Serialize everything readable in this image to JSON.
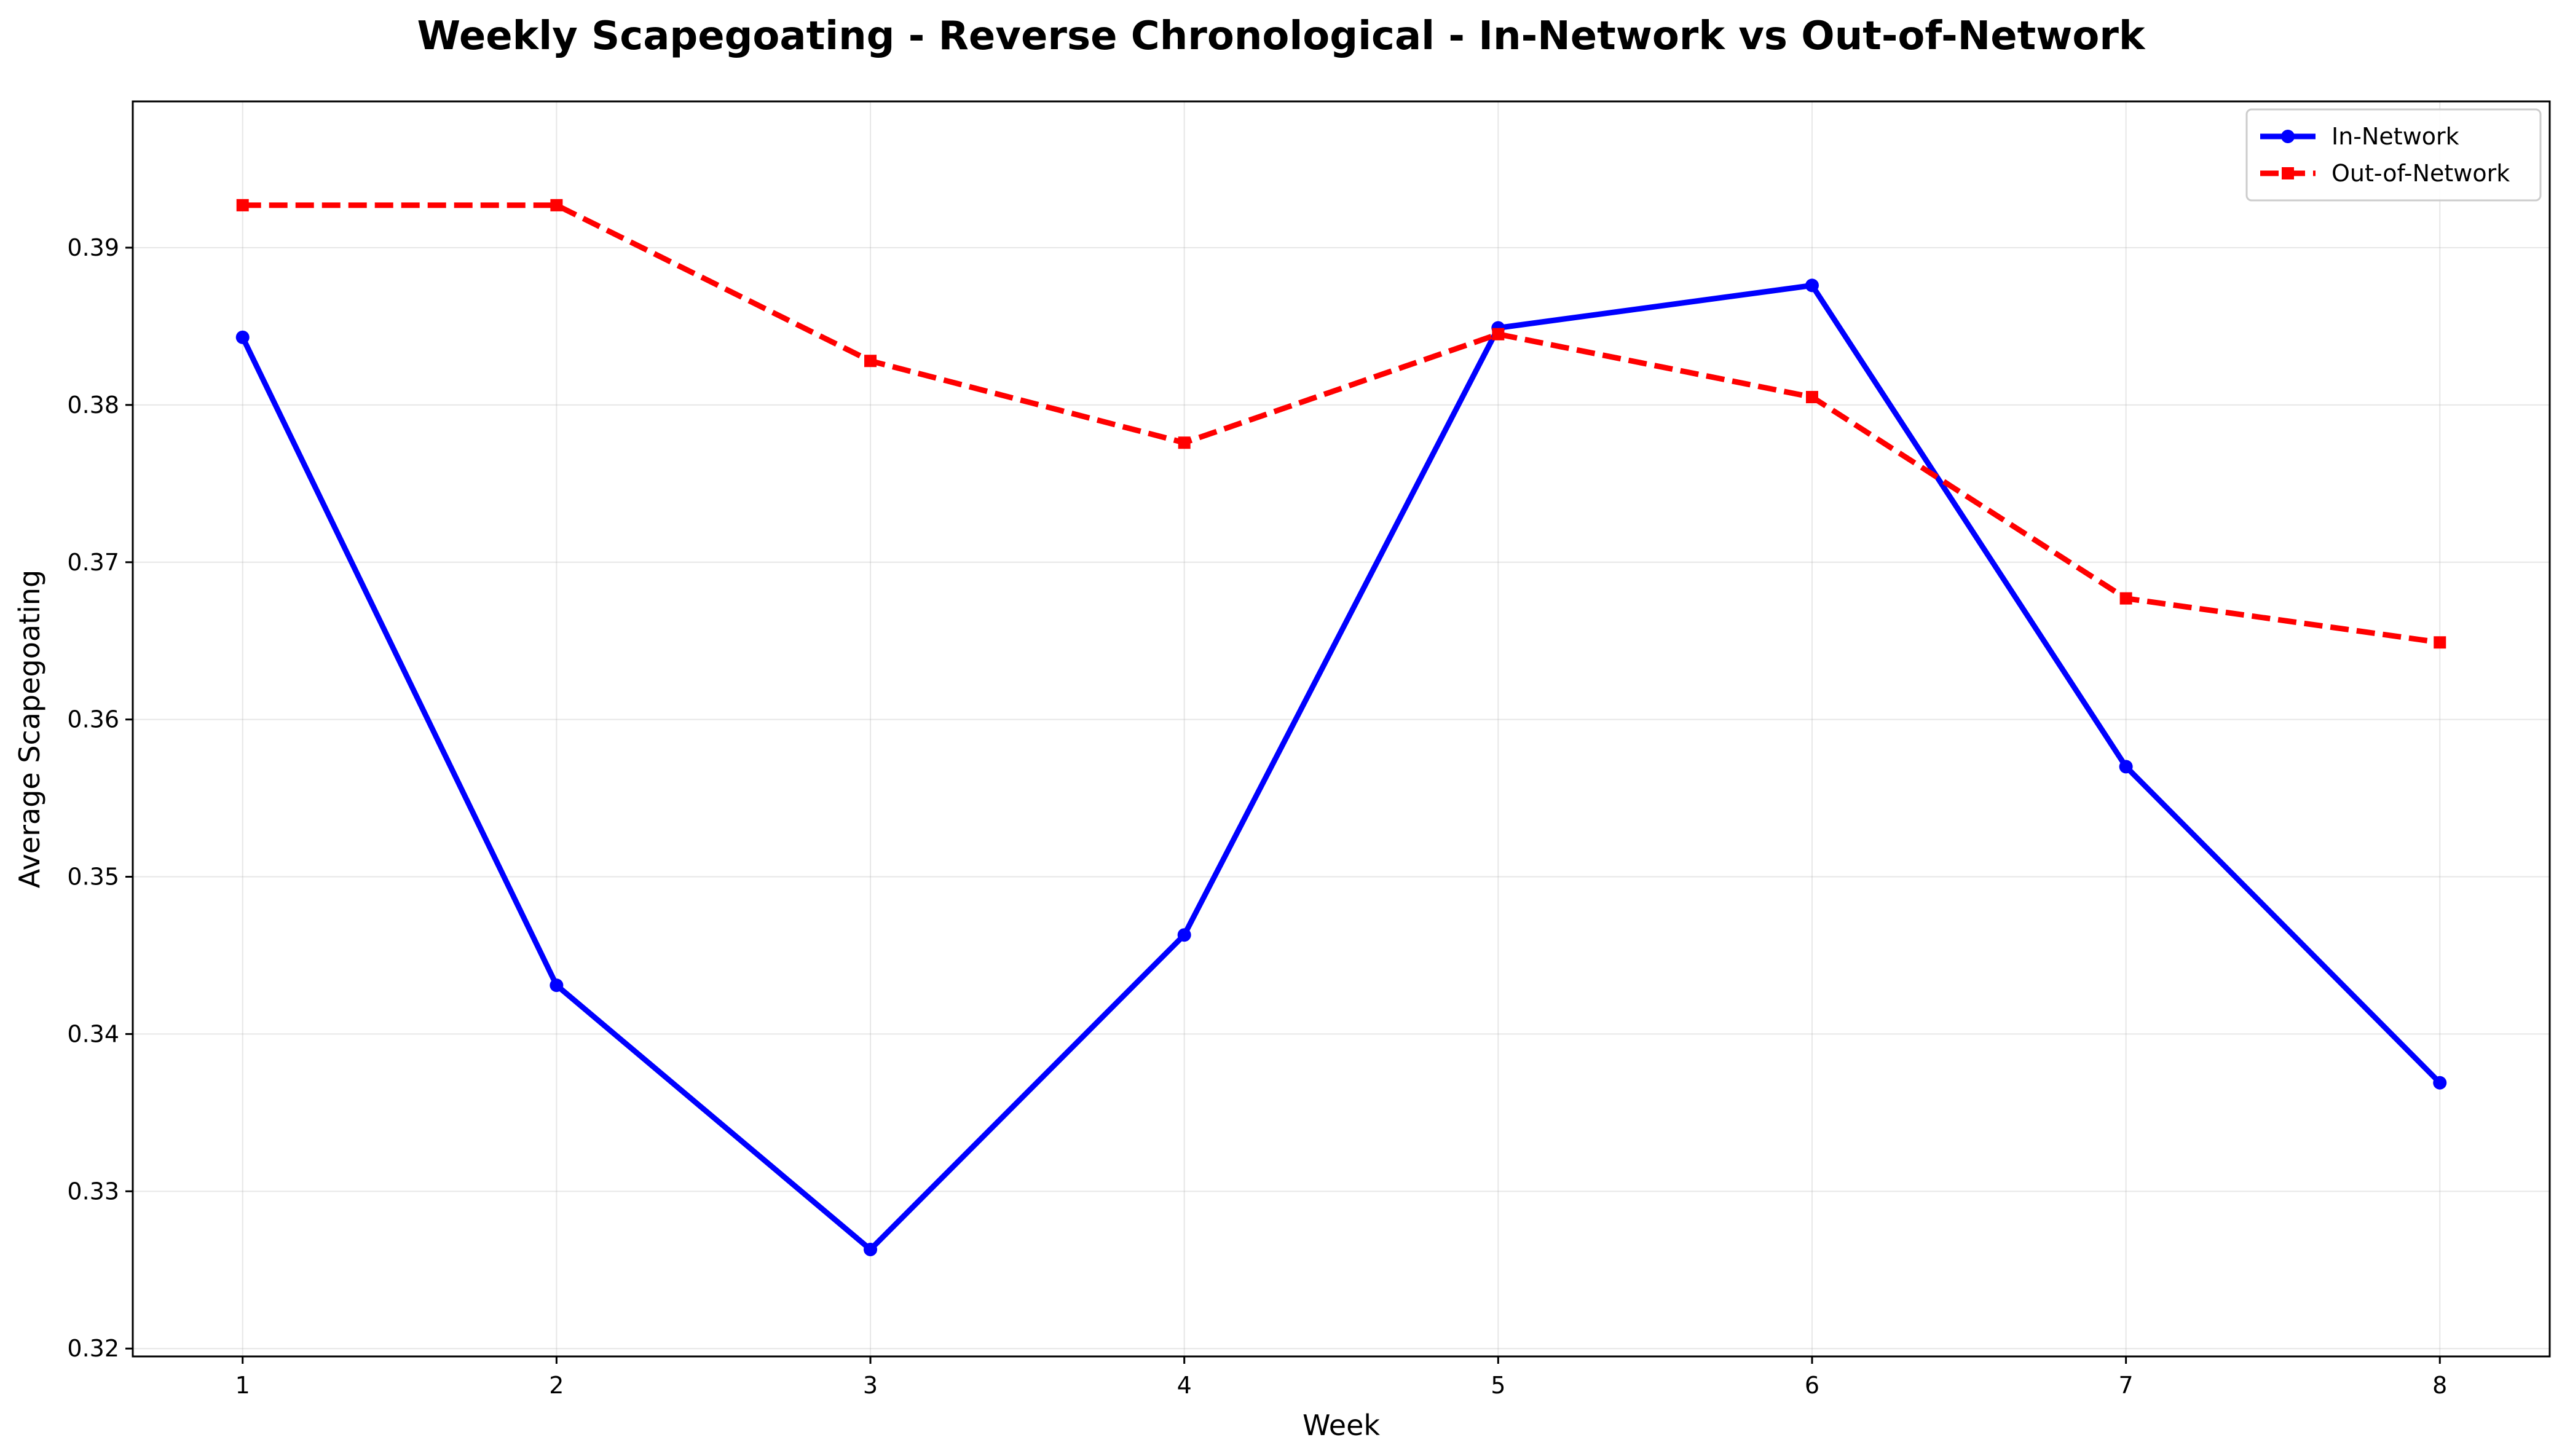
{
  "chart_data": {
    "type": "line",
    "title": "Weekly Scapegoating - Reverse Chronological - In-Network vs Out-of-Network",
    "xlabel": "Week",
    "ylabel": "Average Scapegoating",
    "x": [
      1,
      2,
      3,
      4,
      5,
      6,
      7,
      8
    ],
    "xticks": [
      "1",
      "2",
      "3",
      "4",
      "5",
      "6",
      "7",
      "8"
    ],
    "xlim": [
      0.65,
      8.35
    ],
    "yticks": [
      "0.32",
      "0.33",
      "0.34",
      "0.35",
      "0.36",
      "0.37",
      "0.38",
      "0.39"
    ],
    "ylim": [
      0.3195,
      0.3993
    ],
    "grid": true,
    "legend_position": "top-right",
    "series": [
      {
        "name": "In-Network",
        "color": "#0000ff",
        "linestyle": "solid",
        "marker": "circle",
        "values": [
          0.3843,
          0.3431,
          0.3263,
          0.3463,
          0.3849,
          0.3876,
          0.357,
          0.3369
        ]
      },
      {
        "name": "Out-of-Network",
        "color": "#ff0000",
        "linestyle": "dashed",
        "marker": "square",
        "values": [
          0.3927,
          0.3927,
          0.3828,
          0.3776,
          0.3845,
          0.3805,
          0.3677,
          0.3649
        ]
      }
    ]
  }
}
